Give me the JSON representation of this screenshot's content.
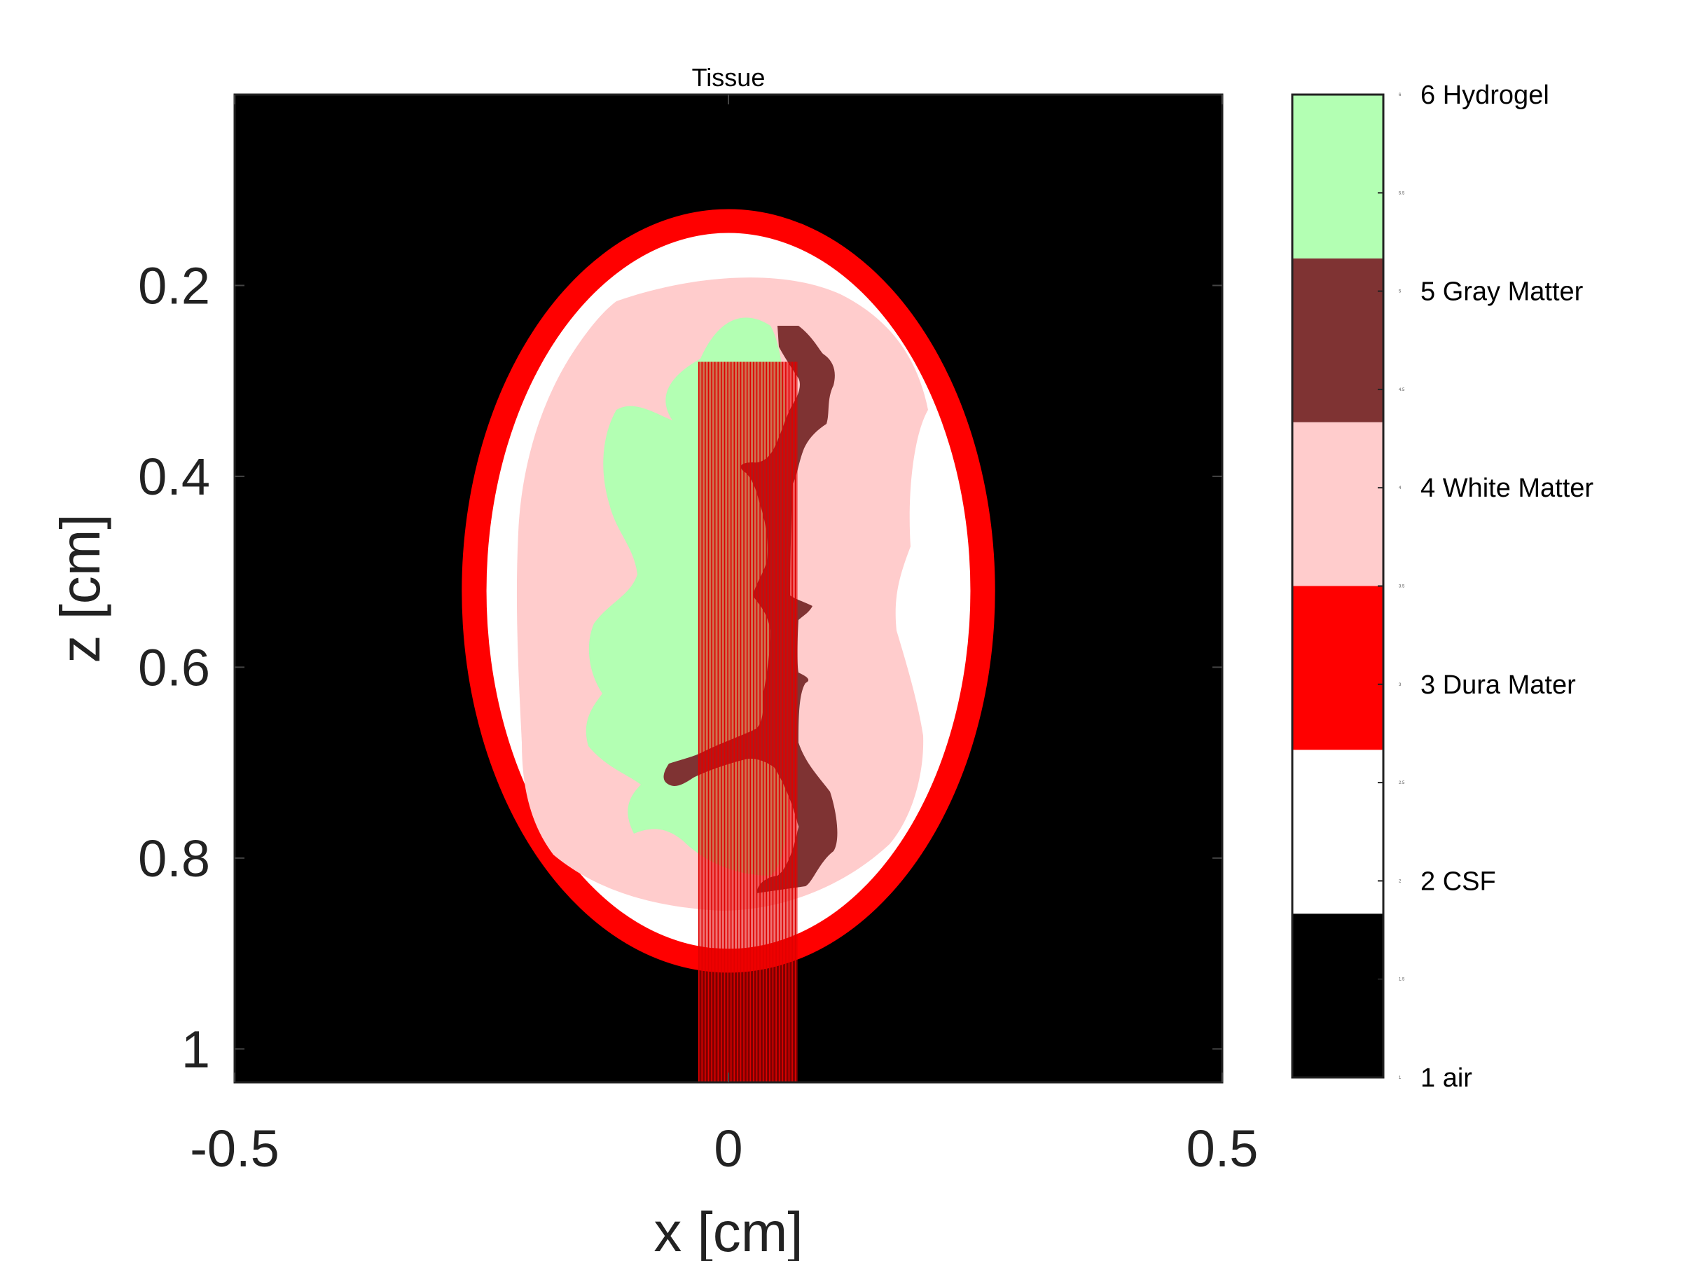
{
  "chart_data": {
    "type": "heatmap",
    "title": "Tissue",
    "xlabel": "x [cm]",
    "ylabel": "z [cm]",
    "xlim": [
      -0.5,
      0.5
    ],
    "ylim": [
      0.0,
      1.035
    ],
    "y_reversed": true,
    "x_ticks": [
      -0.5,
      0,
      0.5
    ],
    "x_tick_labels": [
      "-0.5",
      "0",
      "0.5"
    ],
    "y_ticks": [
      0.2,
      0.4,
      0.6,
      0.8,
      1.0
    ],
    "y_tick_labels": [
      "0.2",
      "0.4",
      "0.6",
      "0.8",
      "1"
    ],
    "grid": false,
    "tissues": [
      {
        "value": 1,
        "label": "1 air",
        "color": "#000000"
      },
      {
        "value": 2,
        "label": "2 CSF",
        "color": "#ffffff"
      },
      {
        "value": 3,
        "label": "3 Dura Mater",
        "color": "#ff0000"
      },
      {
        "value": 4,
        "label": "4 White Matter",
        "color": "#ffcccc"
      },
      {
        "value": 5,
        "label": "5 Gray Matter",
        "color": "#7f3333"
      },
      {
        "value": 6,
        "label": "6 Hydrogel",
        "color": "#b3ffb3"
      }
    ],
    "colorbar": {
      "range": [
        1,
        6
      ],
      "minor_ticks": [
        1,
        1.5,
        2,
        2.5,
        3,
        3.5,
        4,
        4.5,
        5,
        5.5,
        6
      ],
      "minor_tick_labels": [
        "1",
        "1.5",
        "2",
        "2.5",
        "3",
        "3.5",
        "4",
        "4.5",
        "5",
        "5.5",
        "6"
      ]
    },
    "regions": {
      "dura_ellipse": {
        "cx": 0.0,
        "cz": 0.52,
        "rx": 0.27,
        "rz": 0.4
      },
      "csf_ellipse": {
        "cx": 0.0,
        "cz": 0.52,
        "rx": 0.245,
        "rz": 0.375
      },
      "beam": {
        "x_min": -0.03,
        "x_max": 0.07,
        "z_min": 0.28,
        "z_max": 1.035,
        "color": "#e00000"
      }
    }
  }
}
